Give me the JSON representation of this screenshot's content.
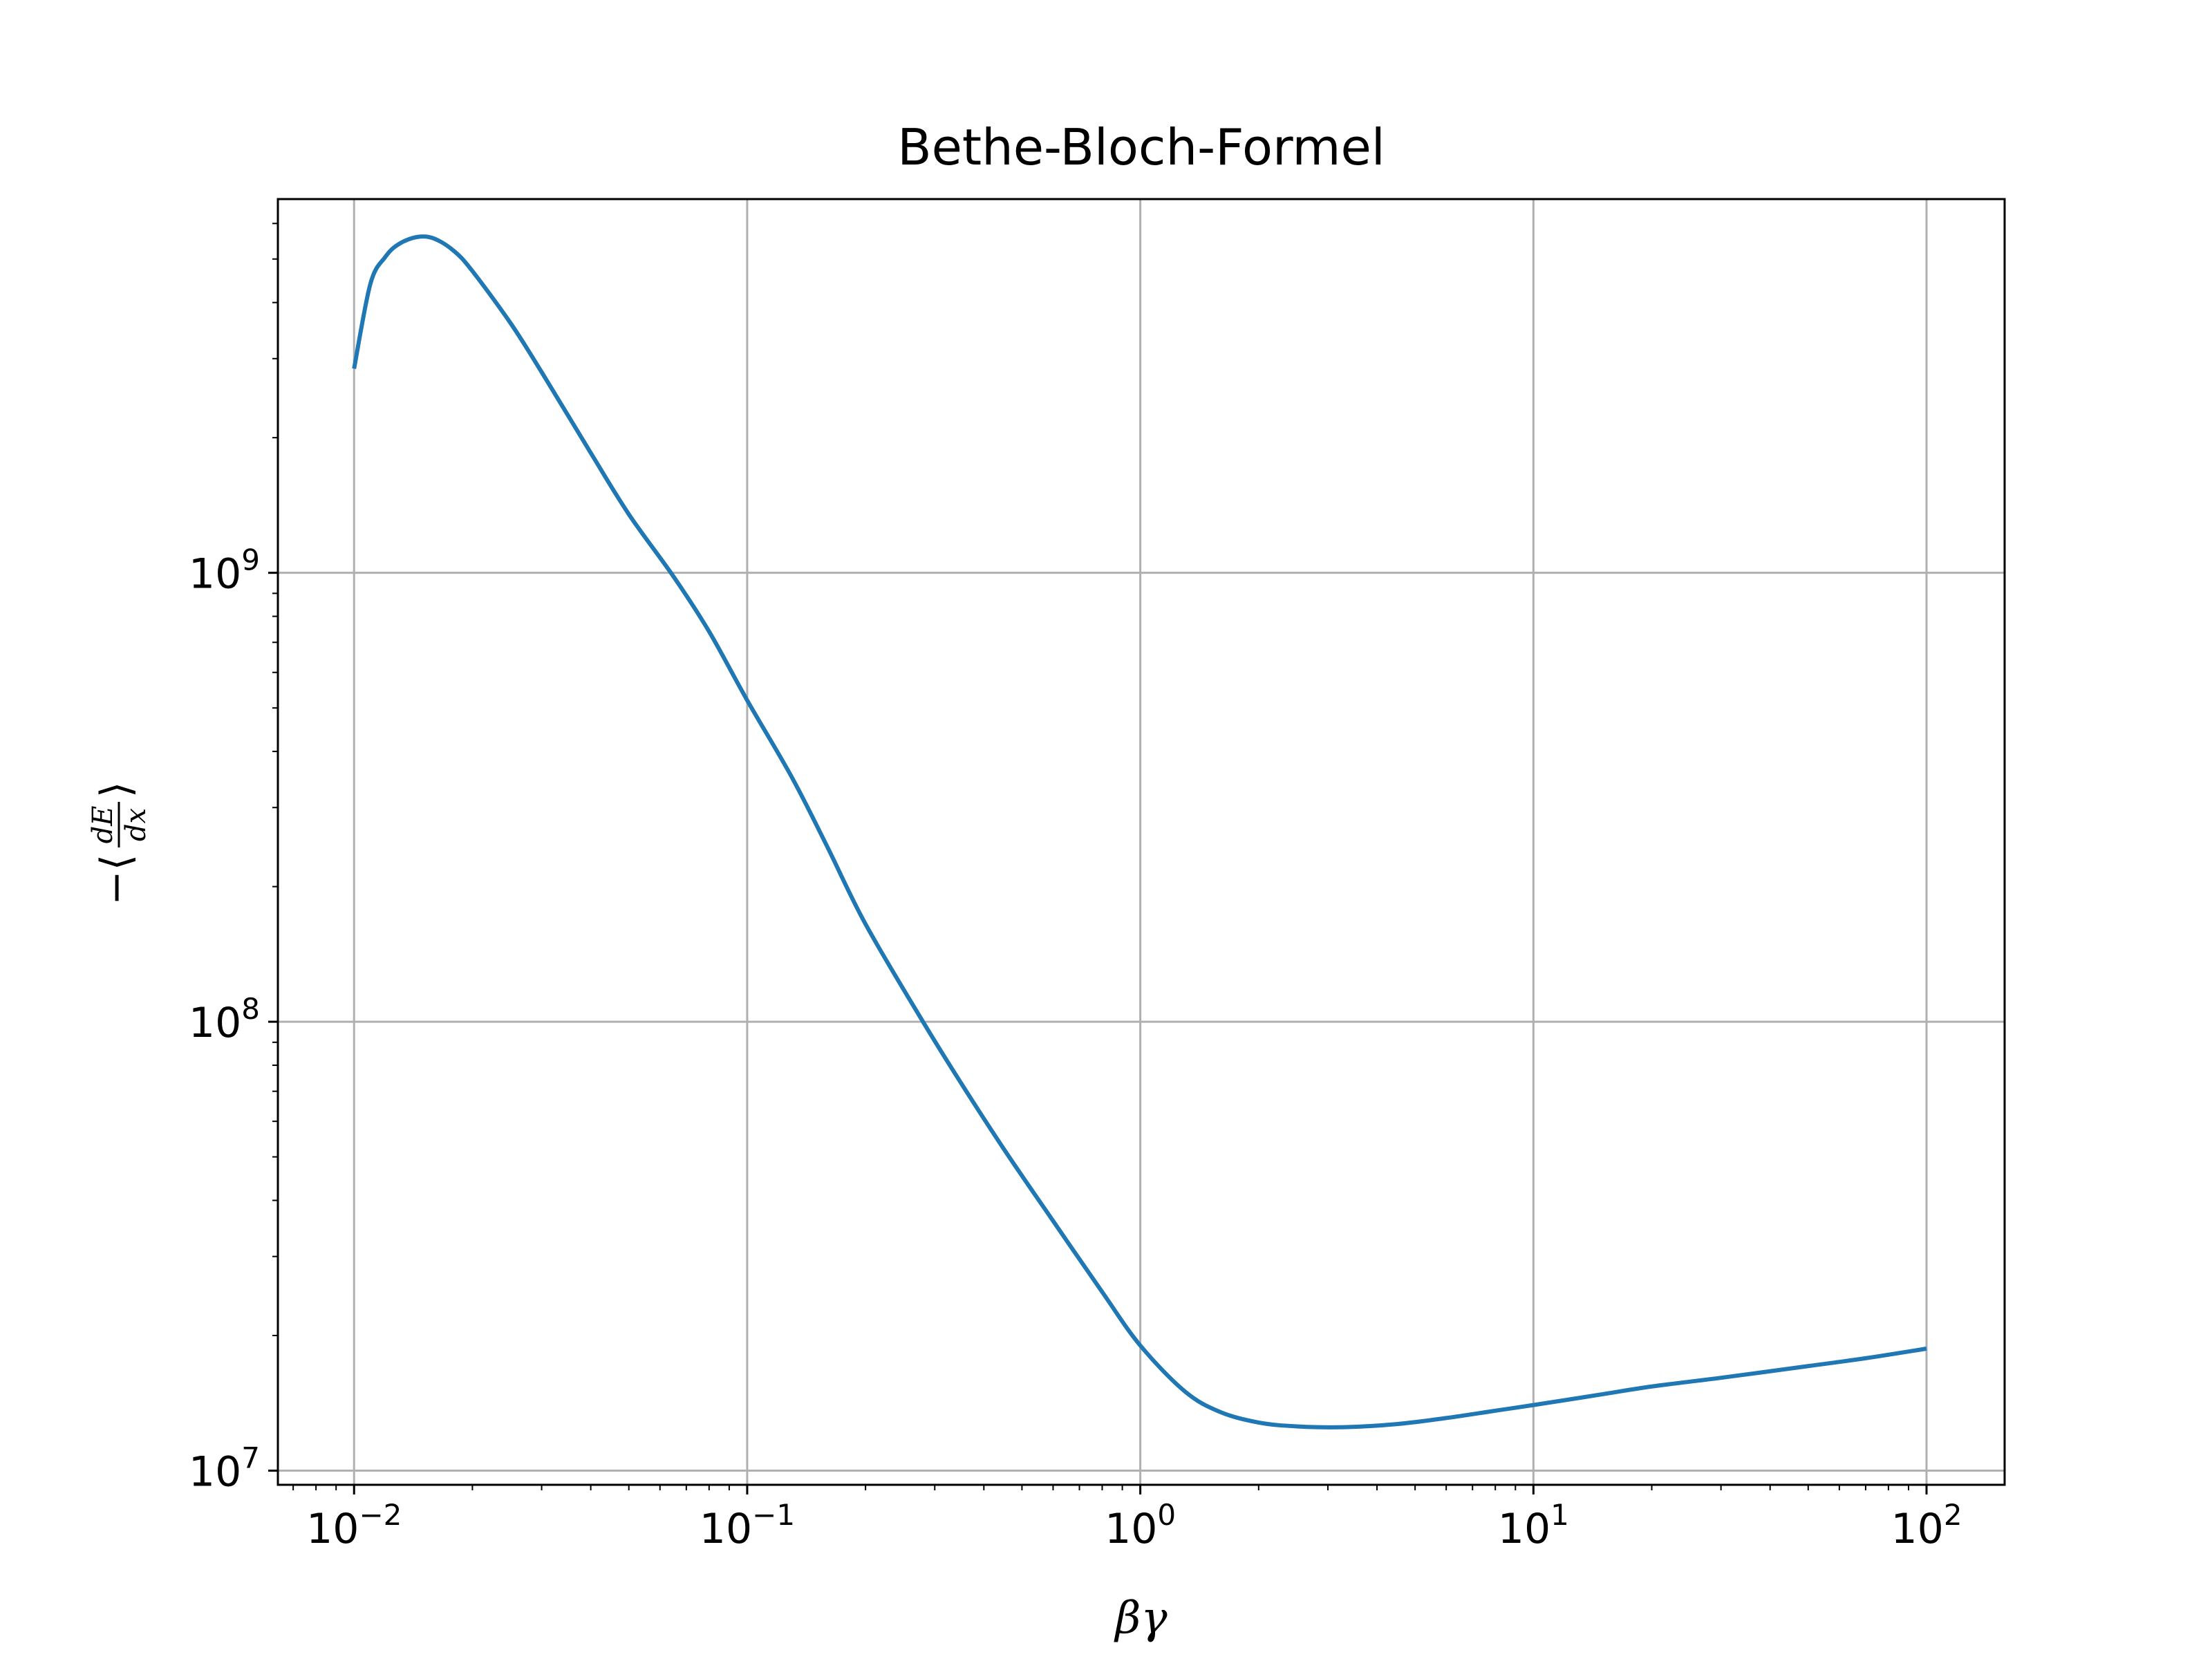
{
  "chart_data": {
    "type": "line",
    "title": "Bethe-Bloch-Formel",
    "xlabel": "βγ",
    "ylabel": {
      "prefix": "−⟨",
      "numerator": "dE",
      "denominator": "dx",
      "suffix": "⟩"
    },
    "xscale": "log",
    "yscale": "log",
    "xlim": [
      0.0064,
      158
    ],
    "ylim": [
      9300000,
      6800000000
    ],
    "grid": true,
    "line_color": "#1f77b4",
    "x_ticks": [
      {
        "value": 0.01,
        "base": "10",
        "exp": "−2"
      },
      {
        "value": 0.1,
        "base": "10",
        "exp": "−1"
      },
      {
        "value": 1,
        "base": "10",
        "exp": "0"
      },
      {
        "value": 10,
        "base": "10",
        "exp": "1"
      },
      {
        "value": 100,
        "base": "10",
        "exp": "2"
      }
    ],
    "y_ticks": [
      {
        "value": 10000000,
        "base": "10",
        "exp": "7"
      },
      {
        "value": 100000000,
        "base": "10",
        "exp": "8"
      },
      {
        "value": 1000000000,
        "base": "10",
        "exp": "9"
      }
    ],
    "series": [
      {
        "x": [
          0.01,
          0.011,
          0.012,
          0.013,
          0.0145,
          0.016,
          0.018,
          0.02,
          0.025,
          0.03,
          0.04,
          0.05,
          0.065,
          0.08,
          0.1,
          0.13,
          0.16,
          0.2,
          0.28,
          0.35,
          0.45,
          0.6,
          0.8,
          1.0,
          1.3,
          1.6,
          2.0,
          2.5,
          3.3,
          4.5,
          6.0,
          8.0,
          10,
          15,
          20,
          30,
          50,
          70,
          100
        ],
        "y": [
          2850000000.0,
          4400000000.0,
          5050000000.0,
          5400000000.0,
          5600000000.0,
          5550000000.0,
          5200000000.0,
          4700000000.0,
          3600000000.0,
          2800000000.0,
          1850000000.0,
          1350000000.0,
          980000000.0,
          740000000.0,
          520000000.0,
          350000000.0,
          245000000.0,
          165000000.0,
          100000000.0,
          73000000.0,
          52000000.0,
          36000000.0,
          25000000.0,
          19000000.0,
          15000000.0,
          13500000.0,
          12800000.0,
          12550000.0,
          12500000.0,
          12700000.0,
          13100000.0,
          13600000.0,
          14000000.0,
          14800000.0,
          15400000.0,
          16100000.0,
          17100000.0,
          17800000.0,
          18700000.0
        ]
      }
    ]
  }
}
